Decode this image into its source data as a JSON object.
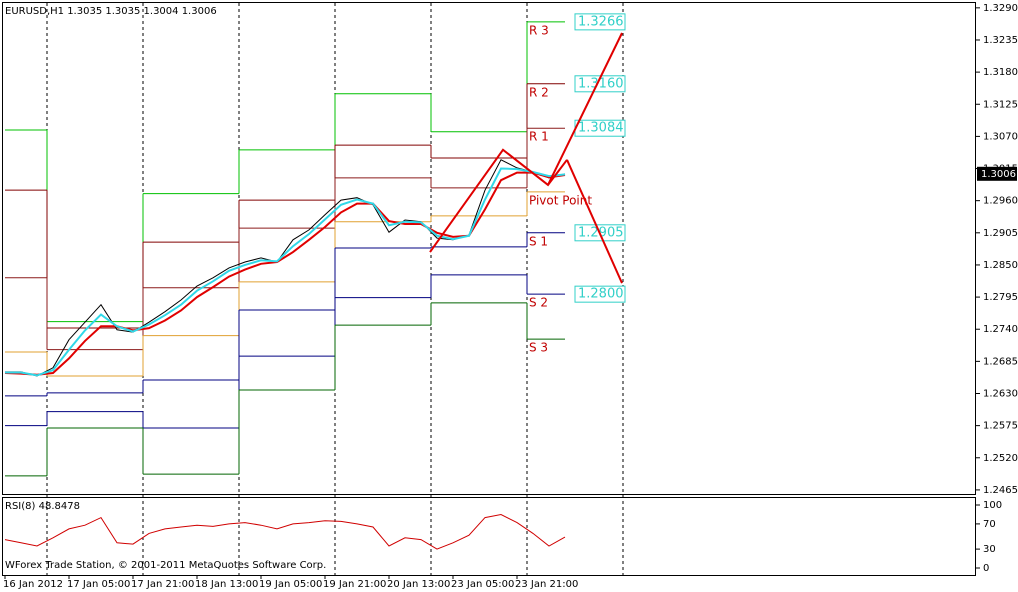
{
  "chart_data": [
    {
      "type": "line",
      "title": "EURUSD,H1  1.3035 1.3035 1.3004 1.3006",
      "xlim": [
        0,
        242.5
      ],
      "ylim": [
        1.2458,
        1.33
      ],
      "yticks": [
        1.2465,
        {
          "value": 1.252,
          "label": "1.2520"
        },
        1.2575,
        {
          "value": 1.263,
          "label": "1.2630"
        },
        1.2685,
        {
          "value": 1.274,
          "label": "1.2740"
        },
        1.2795,
        {
          "value": 1.285,
          "label": "1.2850"
        },
        1.2905,
        {
          "value": 1.296,
          "label": "1.2960"
        },
        1.3015,
        {
          "value": 1.307,
          "label": "1.3070"
        },
        1.3125,
        {
          "value": 1.318,
          "label": "1.3180"
        },
        1.3235,
        {
          "value": 1.329,
          "label": "1.3290"
        }
      ],
      "separators": [
        10.5,
        34.5,
        58.5,
        82.5,
        106.5,
        130.5,
        154.5
      ],
      "x": [
        0,
        4,
        8,
        12,
        16,
        20,
        24,
        28,
        32,
        36,
        40,
        44,
        48,
        52,
        56,
        60,
        64,
        68,
        72,
        76,
        80,
        84,
        88,
        92,
        96,
        100,
        104,
        108,
        112,
        116,
        120,
        124,
        128,
        132,
        136,
        140
      ],
      "current_price_series": 0,
      "series": [
        {
          "color": "#000000",
          "width": 1,
          "values": [
            1.2667,
            1.2667,
            1.266,
            1.2674,
            1.2722,
            1.2752,
            1.2782,
            1.2739,
            1.2735,
            1.2752,
            1.277,
            1.279,
            1.2814,
            1.2828,
            1.2845,
            1.2855,
            1.2862,
            1.2855,
            1.2893,
            1.291,
            1.2936,
            1.2961,
            1.2965,
            1.2953,
            1.2906,
            1.2927,
            1.2924,
            1.2896,
            1.2893,
            1.2901,
            1.2978,
            1.303,
            1.3016,
            1.3009,
            1.2999,
            1.3006
          ]
        },
        {
          "color": "#e00000",
          "width": 2,
          "values": [
            1.2665,
            1.2664,
            1.2662,
            1.2665,
            1.269,
            1.272,
            1.2745,
            1.2745,
            1.2738,
            1.2742,
            1.2755,
            1.2772,
            1.2795,
            1.2812,
            1.283,
            1.2842,
            1.2852,
            1.2855,
            1.2872,
            1.2893,
            1.2915,
            1.294,
            1.2955,
            1.2955,
            1.2925,
            1.292,
            1.292,
            1.2905,
            1.2898,
            1.29,
            1.2945,
            1.2995,
            1.3008,
            1.3008,
            1.3,
            1.3004
          ]
        },
        {
          "color": "#30d8e8",
          "width": 2,
          "values": [
            1.2666,
            1.2666,
            1.2661,
            1.267,
            1.2705,
            1.2738,
            1.2765,
            1.2745,
            1.2736,
            1.2748,
            1.2764,
            1.2782,
            1.2806,
            1.2822,
            1.284,
            1.285,
            1.2858,
            1.2856,
            1.2882,
            1.2903,
            1.2928,
            1.2953,
            1.2962,
            1.2955,
            1.2918,
            1.2924,
            1.2923,
            1.29,
            1.2894,
            1.29,
            1.2962,
            1.3015,
            1.3014,
            1.3009,
            1.3002,
            1.3005
          ]
        }
      ],
      "pivots": [
        {
          "name": "R 3",
          "color": "#00c000",
          "end_label": true,
          "x": [
            0,
            10.5,
            34.5,
            58.5,
            82.5,
            106.5,
            130.5
          ],
          "values": [
            1.3081,
            1.2753,
            1.2972,
            1.3047,
            1.3143,
            1.3078,
            1.3266
          ]
        },
        {
          "name": "R 2",
          "color": "#800000",
          "end_label": true,
          "x": [
            0,
            10.5,
            34.5,
            58.5,
            82.5,
            106.5,
            130.5
          ],
          "values": [
            1.2978,
            1.2742,
            1.2889,
            1.2961,
            1.3055,
            1.3033,
            1.316
          ],
          "value_labels": [
            null,
            null,
            null,
            null,
            null,
            null,
            "1.3160"
          ]
        },
        {
          "name": "R 1",
          "color": "#8b1a1a",
          "end_label": true,
          "x": [
            0,
            10.5,
            34.5,
            58.5,
            82.5,
            106.5,
            130.5
          ],
          "values": [
            1.2828,
            1.2705,
            1.2811,
            1.2913,
            1.2999,
            1.2982,
            1.3084
          ]
        },
        {
          "name": "Pivot Point",
          "color": "#e0a030",
          "end_label": false,
          "x": [
            0,
            10.5,
            34.5,
            58.5,
            82.5,
            106.5,
            130.5
          ],
          "values": [
            1.2701,
            1.266,
            1.2729,
            1.2821,
            1.2924,
            1.2934,
            1.2975
          ]
        },
        {
          "name": "S 1",
          "color": "#000080",
          "end_label": true,
          "x": [
            0,
            10.5,
            34.5,
            58.5,
            82.5,
            106.5,
            130.5
          ],
          "values": [
            1.2626,
            1.2631,
            1.2653,
            1.2773,
            1.2879,
            1.2881,
            1.2905
          ]
        },
        {
          "name": "S 2",
          "color": "#000080",
          "end_label": true,
          "x": [
            0,
            10.5,
            34.5,
            58.5,
            82.5,
            106.5,
            130.5
          ],
          "values": [
            1.2575,
            1.2599,
            1.2571,
            1.2694,
            1.2794,
            1.2833,
            1.28
          ],
          "value_labels": [
            null,
            null,
            null,
            null,
            null,
            null,
            "1.2800"
          ]
        },
        {
          "name": "S 3",
          "color": "#006400",
          "end_label": false,
          "x": [
            0,
            10.5,
            34.5,
            58.5,
            82.5,
            106.5,
            130.5
          ],
          "values": [
            1.2489,
            1.2571,
            1.2492,
            1.2636,
            1.2747,
            1.2785,
            1.2723
          ]
        }
      ],
      "trendlines": [
        {
          "color": "#e00000",
          "width": 2,
          "x": [
            106.25,
            124.5,
            135.75,
            140.5
          ],
          "values": [
            1.2872,
            1.3047,
            1.2987,
            1.303
          ]
        },
        {
          "color": "#e00000",
          "width": 2,
          "x": [
            135.75,
            154.25
          ],
          "values": [
            1.2987,
            1.3247
          ]
        },
        {
          "color": "#e00000",
          "width": 2,
          "x": [
            140.5,
            154.25
          ],
          "values": [
            1.303,
            1.2819
          ]
        }
      ]
    },
    {
      "type": "line",
      "title": "RSI(8) 48.8478",
      "annotation": "WForex Trade Station, © 2001-2011 MetaQuotes Software Corp.",
      "xlim": [
        0,
        242.5
      ],
      "ylim": [
        0,
        100
      ],
      "yticks": [
        0,
        30,
        70,
        100
      ],
      "xticks": [
        {
          "value": 0,
          "label": "16 Jan 2012"
        },
        {
          "value": 16,
          "label": "17 Jan 05:00"
        },
        {
          "value": 32,
          "label": "17 Jan 21:00"
        },
        {
          "value": 48,
          "label": "18 Jan 13:00"
        },
        {
          "value": 64,
          "label": "19 Jan 05:00"
        },
        {
          "value": 80,
          "label": "19 Jan 21:00"
        },
        {
          "value": 96,
          "label": "20 Jan 13:00"
        },
        {
          "value": 112,
          "label": "23 Jan 05:00"
        },
        {
          "value": 128,
          "label": "23 Jan 21:00"
        }
      ],
      "x": [
        0,
        4,
        8,
        12,
        16,
        20,
        24,
        28,
        32,
        36,
        40,
        44,
        48,
        52,
        56,
        60,
        64,
        68,
        72,
        76,
        80,
        84,
        88,
        92,
        96,
        100,
        104,
        108,
        112,
        116,
        120,
        124,
        128,
        132,
        136,
        140
      ],
      "series": [
        {
          "color": "#d00000",
          "width": 1,
          "values": [
            45,
            40,
            35,
            48,
            62,
            68,
            80,
            40,
            38,
            55,
            62,
            65,
            68,
            66,
            70,
            72,
            68,
            62,
            70,
            72,
            75,
            74,
            70,
            65,
            35,
            48,
            45,
            30,
            40,
            52,
            80,
            85,
            72,
            55,
            35,
            49
          ]
        }
      ]
    }
  ]
}
